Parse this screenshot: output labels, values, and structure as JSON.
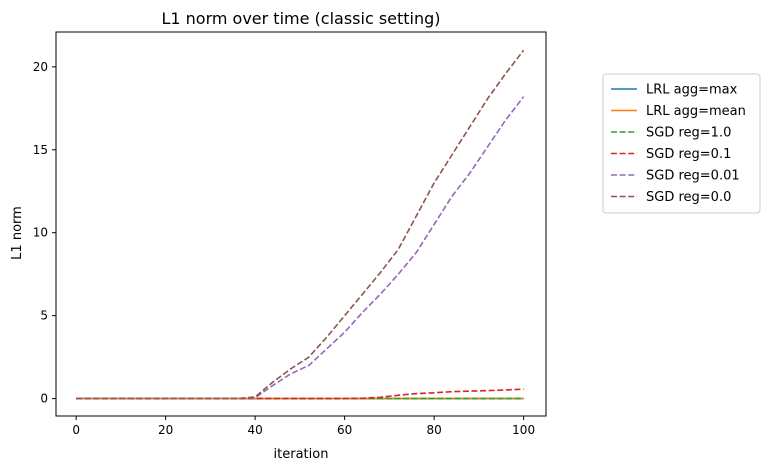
{
  "chart_data": {
    "type": "line",
    "title": "L1 norm over time (classic setting)",
    "xlabel": "iteration",
    "ylabel": "L1 norm",
    "xlim": [
      -4.5,
      105
    ],
    "ylim": [
      -1.05,
      22.1
    ],
    "xticks": [
      0,
      20,
      40,
      60,
      80,
      100
    ],
    "yticks": [
      0,
      5,
      10,
      15,
      20
    ],
    "grid": false,
    "legend_position": "outside-right",
    "x": [
      0,
      4,
      8,
      12,
      16,
      20,
      24,
      28,
      32,
      36,
      40,
      44,
      48,
      52,
      56,
      60,
      64,
      68,
      72,
      76,
      80,
      84,
      88,
      92,
      96,
      100
    ],
    "series": [
      {
        "name": "LRL agg=max",
        "color": "#1f77b4",
        "dash": "solid",
        "values": [
          0,
          0,
          0,
          0,
          0,
          0,
          0,
          0,
          0,
          0,
          0,
          0,
          0,
          0,
          0,
          0,
          0,
          0,
          0,
          0,
          0,
          0,
          0,
          0,
          0,
          0
        ]
      },
      {
        "name": "LRL agg=mean",
        "color": "#ff7f0e",
        "dash": "solid",
        "values": [
          0,
          0,
          0,
          0,
          0,
          0,
          0,
          0,
          0,
          0,
          0,
          0,
          0,
          0,
          0,
          0,
          0,
          0,
          0,
          0,
          0,
          0,
          0,
          0,
          0,
          0
        ]
      },
      {
        "name": "SGD reg=1.0",
        "color": "#2ca02c",
        "dash": "dashed",
        "values": [
          0,
          0,
          0,
          0,
          0,
          0,
          0,
          0,
          0,
          0,
          0,
          0,
          0,
          0,
          0,
          0,
          0,
          0,
          0,
          0,
          0,
          0,
          0,
          0,
          0,
          0
        ]
      },
      {
        "name": "SGD reg=0.1",
        "color": "#d62728",
        "dash": "dashed",
        "values": [
          0,
          0,
          0,
          0,
          0,
          0,
          0,
          0,
          0,
          0,
          0,
          0,
          0,
          0,
          0,
          0,
          0.02,
          0.08,
          0.2,
          0.3,
          0.35,
          0.42,
          0.45,
          0.48,
          0.52,
          0.57
        ]
      },
      {
        "name": "SGD reg=0.01",
        "color": "#9467bd",
        "dash": "dashed",
        "values": [
          0,
          0,
          0,
          0,
          0,
          0,
          0,
          0,
          0,
          0,
          0.05,
          0.8,
          1.5,
          2.0,
          3.0,
          4.0,
          5.2,
          6.3,
          7.5,
          8.8,
          10.5,
          12.2,
          13.6,
          15.2,
          16.8,
          18.2
        ]
      },
      {
        "name": "SGD reg=0.0",
        "color": "#8c564b",
        "dash": "dashed",
        "values": [
          0,
          0,
          0,
          0,
          0,
          0,
          0,
          0,
          0,
          0,
          0.1,
          1.0,
          1.8,
          2.5,
          3.7,
          5.0,
          6.3,
          7.6,
          9.0,
          11.0,
          13.0,
          14.7,
          16.4,
          18.1,
          19.6,
          21.0
        ]
      }
    ]
  }
}
